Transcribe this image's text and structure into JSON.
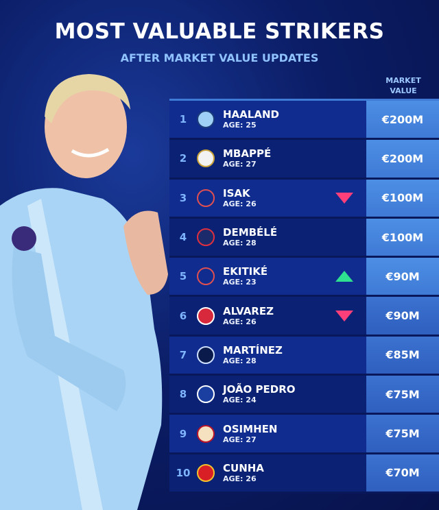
{
  "header": {
    "title": "MOST VALUABLE STRIKERS",
    "subtitle": "AFTER MARKET VALUE UPDATES",
    "column_label": "MARKET VALUE"
  },
  "colors": {
    "up": "#2ee08f",
    "down": "#ff3f7a",
    "value_column": "#4d8fe4",
    "background": "#0b1d66"
  },
  "rows": [
    {
      "rank": "1",
      "club_icon": "man-city-crest",
      "name": "HAALAND",
      "age": "AGE: 25",
      "trend": "",
      "value": "€200M"
    },
    {
      "rank": "2",
      "club_icon": "real-madrid-crest",
      "name": "MBAPPÉ",
      "age": "AGE: 27",
      "trend": "",
      "value": "€200M"
    },
    {
      "rank": "3",
      "club_icon": "liverpool-crest",
      "name": "ISAK",
      "age": "AGE: 26",
      "trend": "down",
      "value": "€100M"
    },
    {
      "rank": "4",
      "club_icon": "psg-crest",
      "name": "DEMBÉLÉ",
      "age": "AGE: 28",
      "trend": "",
      "value": "€100M"
    },
    {
      "rank": "5",
      "club_icon": "liverpool-crest",
      "name": "EKITIKÉ",
      "age": "AGE: 23",
      "trend": "up",
      "value": "€90M"
    },
    {
      "rank": "6",
      "club_icon": "atletico-madrid-crest",
      "name": "ALVAREZ",
      "age": "AGE: 26",
      "trend": "down",
      "value": "€90M"
    },
    {
      "rank": "7",
      "club_icon": "inter-crest",
      "name": "MARTÍNEZ",
      "age": "AGE: 28",
      "trend": "",
      "value": "€85M"
    },
    {
      "rank": "8",
      "club_icon": "chelsea-crest",
      "name": "JOÃO PEDRO",
      "age": "AGE: 24",
      "trend": "",
      "value": "€75M"
    },
    {
      "rank": "9",
      "club_icon": "galatasaray-crest",
      "name": "OSIMHEN",
      "age": "AGE: 27",
      "trend": "",
      "value": "€75M"
    },
    {
      "rank": "10",
      "club_icon": "man-united-crest",
      "name": "CUNHA",
      "age": "AGE: 26",
      "trend": "",
      "value": "€70M"
    }
  ]
}
